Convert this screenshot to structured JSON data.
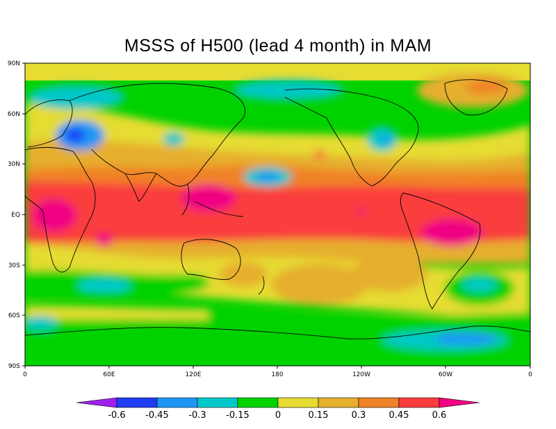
{
  "title": "MSSS of H500 (lead 4 month) in MAM",
  "map": {
    "lon_ticks": [
      "0",
      "60E",
      "120E",
      "180",
      "120W",
      "60W",
      "0"
    ],
    "lat_ticks": [
      "90N",
      "60N",
      "30N",
      "EQ",
      "30S",
      "60S",
      "90S"
    ],
    "extent": {
      "lon": [
        0,
        360
      ],
      "lat": [
        -90,
        90
      ]
    }
  },
  "colorbar": {
    "levels": [
      "-0.6",
      "-0.45",
      "-0.3",
      "-0.15",
      "0",
      "0.15",
      "0.3",
      "0.45",
      "0.6"
    ],
    "colors": [
      "#a020f0",
      "#1f3cf5",
      "#1e96f5",
      "#00c8c8",
      "#00d200",
      "#e6dc32",
      "#e6af2d",
      "#f08228",
      "#fa3c3c",
      "#f00082"
    ]
  }
}
